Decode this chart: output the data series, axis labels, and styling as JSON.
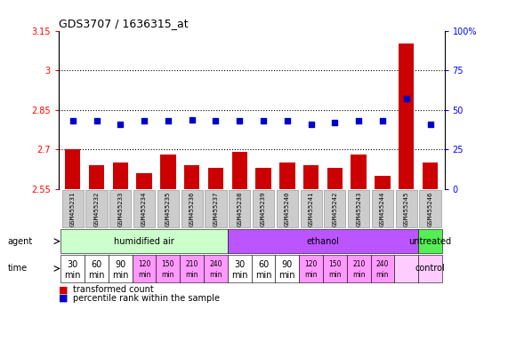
{
  "title": "GDS3707 / 1636315_at",
  "samples": [
    "GSM455231",
    "GSM455232",
    "GSM455233",
    "GSM455234",
    "GSM455235",
    "GSM455236",
    "GSM455237",
    "GSM455238",
    "GSM455239",
    "GSM455240",
    "GSM455241",
    "GSM455242",
    "GSM455243",
    "GSM455244",
    "GSM455245",
    "GSM455246"
  ],
  "bar_values": [
    2.7,
    2.64,
    2.65,
    2.61,
    2.68,
    2.64,
    2.63,
    2.69,
    2.63,
    2.65,
    2.64,
    2.63,
    2.68,
    2.6,
    3.1,
    2.65
  ],
  "dot_values": [
    43,
    43,
    41,
    43,
    43,
    44,
    43,
    43,
    43,
    43,
    41,
    42,
    43,
    43,
    57,
    41
  ],
  "ylim": [
    2.55,
    3.15
  ],
  "yticks": [
    2.55,
    2.7,
    2.85,
    3.0,
    3.15
  ],
  "ytick_labels": [
    "2.55",
    "2.7",
    "2.85",
    "3",
    "3.15"
  ],
  "y2lim": [
    0,
    100
  ],
  "y2ticks": [
    0,
    25,
    50,
    75,
    100
  ],
  "y2tick_labels": [
    "0",
    "25",
    "50",
    "75",
    "100%"
  ],
  "bar_color": "#cc0000",
  "dot_color": "#0000cc",
  "bg_color": "#ffffff",
  "plot_bg": "#ffffff",
  "agent_groups": [
    {
      "label": "humidified air",
      "start": 0,
      "end": 7,
      "color": "#ccffcc"
    },
    {
      "label": "ethanol",
      "start": 7,
      "end": 15,
      "color": "#bb55ff"
    },
    {
      "label": "untreated",
      "start": 15,
      "end": 16,
      "color": "#55ee55"
    }
  ],
  "time_labels_top": [
    "30",
    "60",
    "90",
    "120",
    "150",
    "210",
    "240",
    "30",
    "60",
    "90",
    "120",
    "150",
    "210",
    "240",
    "",
    ""
  ],
  "time_labels_bot": [
    "min",
    "min",
    "min",
    "min",
    "min",
    "min",
    "min",
    "min",
    "min",
    "min",
    "min",
    "min",
    "min",
    "min",
    "",
    ""
  ],
  "time_colors": [
    "#ffffff",
    "#ffffff",
    "#ffffff",
    "#ff99ff",
    "#ff99ff",
    "#ff99ff",
    "#ff99ff",
    "#ffffff",
    "#ffffff",
    "#ffffff",
    "#ff99ff",
    "#ff99ff",
    "#ff99ff",
    "#ff99ff",
    "#ffccff",
    "#ffccff"
  ],
  "legend_bar_label": "transformed count",
  "legend_dot_label": "percentile rank within the sample",
  "agent_label": "agent",
  "time_label": "time",
  "dotted_lines": [
    3.0,
    2.85,
    2.7
  ],
  "bar_baseline": 2.55,
  "sample_box_color": "#cccccc",
  "sample_box_edge": "#999999"
}
